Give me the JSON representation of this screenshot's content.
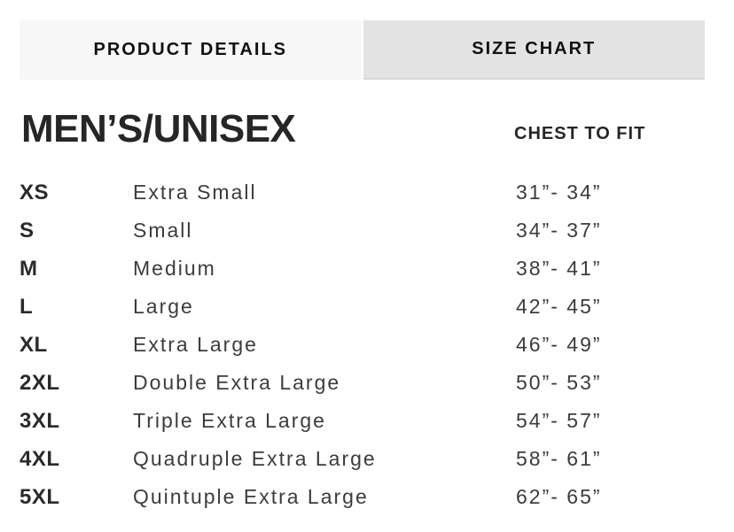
{
  "tabs": [
    {
      "label": "PRODUCT DETAILS",
      "active": false
    },
    {
      "label": "SIZE CHART",
      "active": true
    }
  ],
  "section": {
    "title": "MEN’S/UNISEX",
    "column_header": "CHEST TO FIT"
  },
  "size_rows": [
    {
      "code": "XS",
      "name": "Extra Small",
      "range": "31”- 34”"
    },
    {
      "code": "S",
      "name": "Small",
      "range": "34”- 37”"
    },
    {
      "code": "M",
      "name": "Medium",
      "range": "38”- 41”"
    },
    {
      "code": "L",
      "name": "Large",
      "range": "42”- 45”"
    },
    {
      "code": "XL",
      "name": "Extra Large",
      "range": "46”- 49”"
    },
    {
      "code": "2XL",
      "name": "Double Extra Large",
      "range": "50”- 53”"
    },
    {
      "code": "3XL",
      "name": "Triple Extra Large",
      "range": "54”- 57”"
    },
    {
      "code": "4XL",
      "name": "Quadruple Extra Large",
      "range": "58”- 61”"
    },
    {
      "code": "5XL",
      "name": "Quintuple Extra Large",
      "range": "62”- 65”"
    }
  ],
  "colors": {
    "page_bg": "#ffffff",
    "tab_inactive_bg": "#f7f7f7",
    "tab_active_bg": "#e3e3e3",
    "tab_text": "#111111",
    "heading_text": "#262626",
    "code_text": "#2a2a2a",
    "body_text": "#3c3c3c"
  }
}
